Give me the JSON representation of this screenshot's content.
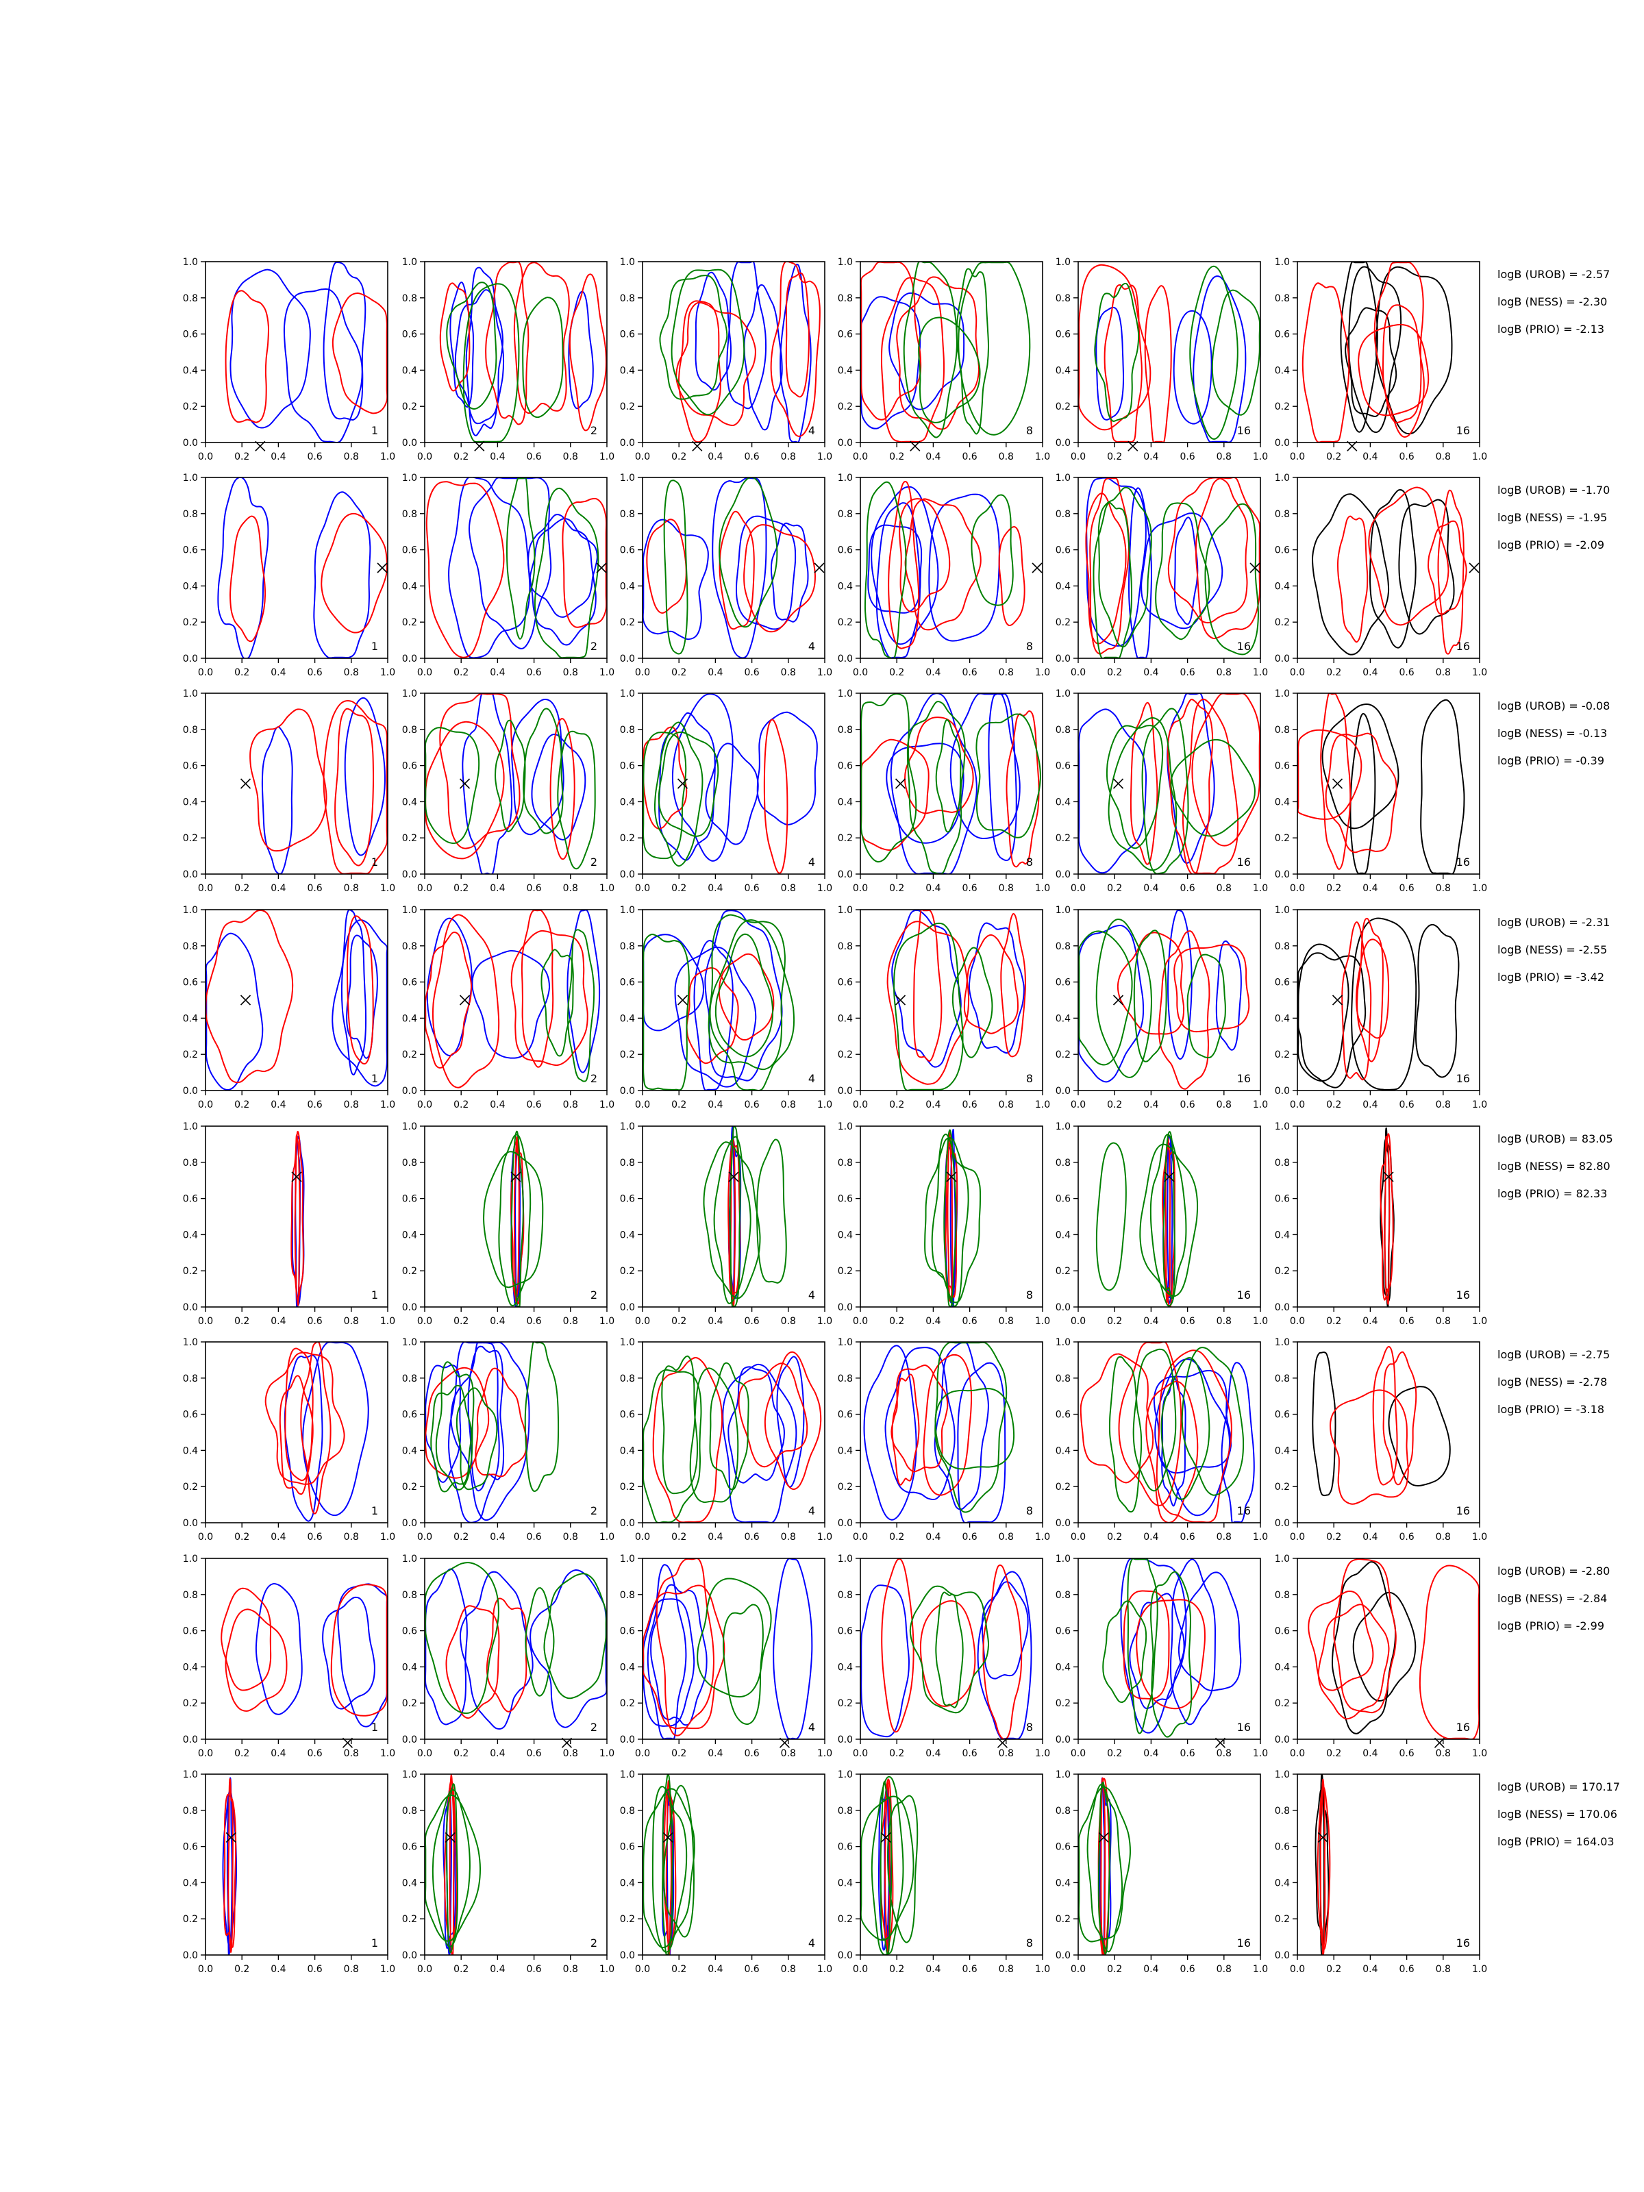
{
  "colors": {
    "blue": "#0000ff",
    "red": "#ff0000",
    "green": "#008000",
    "black": "#000000"
  },
  "chart_data": {
    "type": "contour-grid",
    "xlim": [
      0,
      1
    ],
    "ylim": [
      0,
      1
    ],
    "x_ticks": [
      "0.0",
      "0.2",
      "0.4",
      "0.6",
      "0.8",
      "1.0"
    ],
    "y_ticks": [
      "0.0",
      "0.2",
      "0.4",
      "0.6",
      "0.8",
      "1.0"
    ],
    "grid": false,
    "panel_columns": [
      {
        "annotation": "1",
        "series_colors": [
          "blue",
          "red"
        ]
      },
      {
        "annotation": "2",
        "series_colors": [
          "blue",
          "red",
          "green"
        ]
      },
      {
        "annotation": "4",
        "series_colors": [
          "blue",
          "red",
          "green"
        ]
      },
      {
        "annotation": "8",
        "series_colors": [
          "blue",
          "red",
          "green"
        ]
      },
      {
        "annotation": "16",
        "series_colors": [
          "blue",
          "red",
          "green"
        ]
      },
      {
        "annotation": "16",
        "series_colors": [
          "black",
          "red"
        ]
      }
    ],
    "rows": [
      {
        "marker": [
          0.3,
          -0.02
        ],
        "stats": [
          "logB (UROB) = -2.57",
          "logB (NESS) = -2.30",
          "logB (PRIO) = -2.13"
        ]
      },
      {
        "marker": [
          0.97,
          0.5
        ],
        "stats": [
          "logB (UROB) = -1.70",
          "logB (NESS) = -1.95",
          "logB (PRIO) = -2.09"
        ]
      },
      {
        "marker": [
          0.22,
          0.5
        ],
        "stats": [
          "logB (UROB) = -0.08",
          "logB (NESS) = -0.13",
          "logB (PRIO) = -0.39"
        ]
      },
      {
        "marker": [
          0.22,
          0.5
        ],
        "stats": [
          "logB (UROB) = -2.31",
          "logB (NESS) = -2.55",
          "logB (PRIO) = -3.42"
        ]
      },
      {
        "marker": [
          0.5,
          0.72
        ],
        "stats": [
          "logB (UROB) = 83.05",
          "logB (NESS) = 82.80",
          "logB (PRIO) = 82.33"
        ]
      },
      {
        "marker": null,
        "stats": [
          "logB (UROB) = -2.75",
          "logB (NESS) = -2.78",
          "logB (PRIO) = -3.18"
        ]
      },
      {
        "marker": [
          0.78,
          -0.02
        ],
        "stats": [
          "logB (UROB) = -2.80",
          "logB (NESS) = -2.84",
          "logB (PRIO) = -2.99"
        ]
      },
      {
        "marker": [
          0.14,
          0.65
        ],
        "stats": [
          "logB (UROB) = 170.17",
          "logB (NESS) = 170.06",
          "logB (PRIO) = 164.03"
        ]
      }
    ]
  }
}
